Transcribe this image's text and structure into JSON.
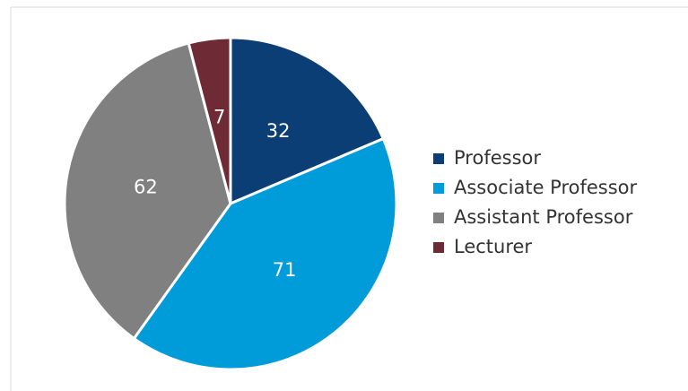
{
  "chart_data": {
    "type": "pie",
    "categories": [
      "Professor",
      "Associate Professor",
      "Assistant Professor",
      "Lecturer"
    ],
    "values": [
      32,
      71,
      62,
      7
    ],
    "colors": [
      "#0b3e74",
      "#009bd9",
      "#808080",
      "#6f2b35"
    ],
    "legend": "right"
  }
}
